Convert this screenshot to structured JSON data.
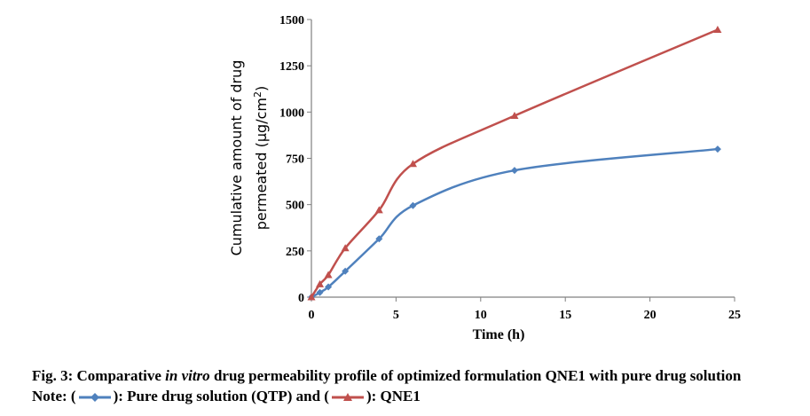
{
  "chart_data": {
    "type": "line",
    "title": "",
    "xlabel": "Time (h)",
    "ylabel_line1": "Cumulative amount of drug",
    "ylabel_line2_prefix": "permeated (μg/cm",
    "ylabel_line2_sup": "2",
    "ylabel_line2_suffix": ")",
    "xlim": [
      0,
      25
    ],
    "ylim": [
      0,
      1500
    ],
    "xticks": [
      0,
      5,
      10,
      15,
      20,
      25
    ],
    "yticks": [
      0,
      250,
      500,
      750,
      1000,
      1250,
      1500
    ],
    "grid": false,
    "series": [
      {
        "name": "Pure drug solution (QTP)",
        "color": "#4F81BD",
        "marker": "diamond",
        "x": [
          0,
          0.5,
          1,
          2,
          4,
          6,
          12,
          24
        ],
        "y": [
          0,
          25,
          55,
          140,
          315,
          495,
          685,
          800
        ]
      },
      {
        "name": "QNE1",
        "color": "#C0504D",
        "marker": "triangle",
        "x": [
          0,
          0.5,
          1,
          2,
          4,
          6,
          12,
          24
        ],
        "y": [
          0,
          70,
          120,
          265,
          470,
          720,
          980,
          1445
        ]
      }
    ]
  },
  "caption": {
    "line1_prefix": "Fig. 3: Comparative ",
    "line1_italic": "in vitro",
    "line1_suffix": " drug permeability profile of optimized formulation QNE1 with pure drug solution",
    "line2_start": "Note: (",
    "line2_mid": "): Pure drug solution (QTP) and (",
    "line2_end": "): QNE1"
  }
}
